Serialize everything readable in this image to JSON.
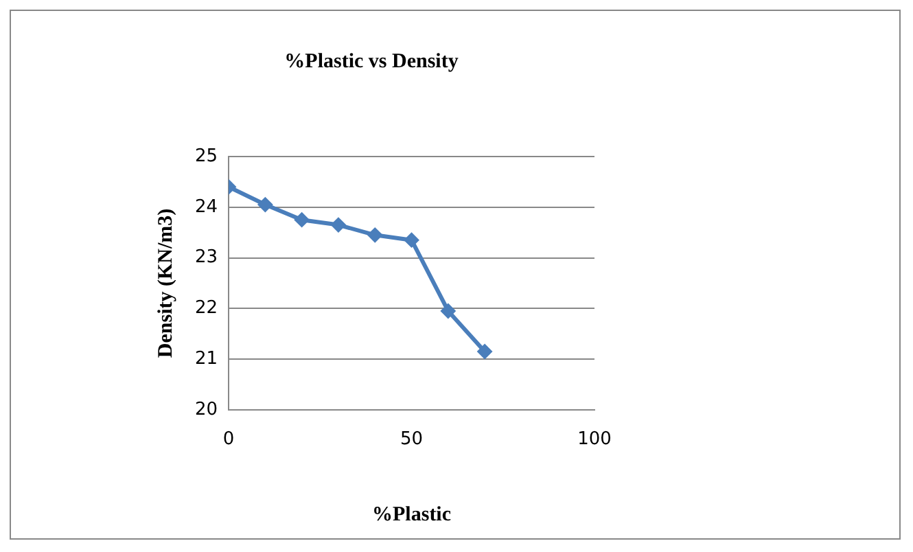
{
  "chart_data": {
    "type": "line",
    "title": "%Plastic vs Density",
    "xlabel": "%Plastic",
    "ylabel": "Density (KN/m3)",
    "x": [
      0,
      10,
      20,
      30,
      40,
      50,
      60,
      70
    ],
    "series": [
      {
        "color": "#4a7ebb",
        "values": [
          24.4,
          24.05,
          23.75,
          23.65,
          23.45,
          23.35,
          21.95,
          21.15
        ]
      }
    ],
    "xlim": [
      0,
      100
    ],
    "xticks": [
      0,
      50,
      100
    ],
    "ylim": [
      20,
      25
    ],
    "yticks": [
      20,
      21,
      22,
      23,
      24,
      25
    ],
    "grid": "y",
    "legend": false,
    "marker": "diamond",
    "line_style": "solid"
  }
}
